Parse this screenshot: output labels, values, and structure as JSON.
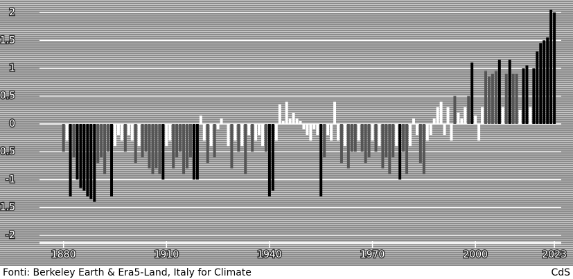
{
  "chart_data": {
    "type": "bar",
    "x": [
      1880,
      1881,
      1882,
      1883,
      1884,
      1885,
      1886,
      1887,
      1888,
      1889,
      1890,
      1891,
      1892,
      1893,
      1894,
      1895,
      1896,
      1897,
      1898,
      1899,
      1900,
      1901,
      1902,
      1903,
      1904,
      1905,
      1906,
      1907,
      1908,
      1909,
      1910,
      1911,
      1912,
      1913,
      1914,
      1915,
      1916,
      1917,
      1918,
      1919,
      1920,
      1921,
      1922,
      1923,
      1924,
      1925,
      1926,
      1927,
      1928,
      1929,
      1930,
      1931,
      1932,
      1933,
      1934,
      1935,
      1936,
      1937,
      1938,
      1939,
      1940,
      1941,
      1942,
      1943,
      1944,
      1945,
      1946,
      1947,
      1948,
      1949,
      1950,
      1951,
      1952,
      1953,
      1954,
      1955,
      1956,
      1957,
      1958,
      1959,
      1960,
      1961,
      1962,
      1963,
      1964,
      1965,
      1966,
      1967,
      1968,
      1969,
      1970,
      1971,
      1972,
      1973,
      1974,
      1975,
      1976,
      1977,
      1978,
      1979,
      1980,
      1981,
      1982,
      1983,
      1984,
      1985,
      1986,
      1987,
      1988,
      1989,
      1990,
      1991,
      1992,
      1993,
      1994,
      1995,
      1996,
      1997,
      1998,
      1999,
      2000,
      2001,
      2002,
      2003,
      2004,
      2005,
      2006,
      2007,
      2008,
      2009,
      2010,
      2011,
      2012,
      2013,
      2014,
      2015,
      2016,
      2017,
      2018,
      2019,
      2020,
      2021,
      2022,
      2023
    ],
    "values": [
      -0.5,
      -0.3,
      -1.3,
      -0.6,
      -1.0,
      -1.15,
      -1.2,
      -1.3,
      -1.35,
      -1.4,
      -0.7,
      -0.6,
      -0.9,
      -0.5,
      -1.3,
      -0.4,
      -0.2,
      -0.3,
      -0.5,
      -0.2,
      -0.3,
      -0.7,
      -0.4,
      -0.6,
      -0.5,
      -0.8,
      -0.9,
      -0.8,
      -0.9,
      -1.0,
      -0.4,
      -0.3,
      -0.8,
      -0.6,
      -0.5,
      -0.9,
      -0.8,
      -0.6,
      -1.0,
      -1.0,
      0.15,
      -0.3,
      -0.7,
      -0.4,
      -0.6,
      -0.1,
      0.1,
      0,
      -0.4,
      -0.8,
      -0.3,
      -0.5,
      -0.4,
      -0.9,
      -0.2,
      -0.5,
      -0.3,
      -0.2,
      -0.4,
      -0.5,
      -1.3,
      -1.2,
      -0.3,
      0.35,
      0.05,
      0.4,
      0.1,
      0.2,
      0.1,
      0.05,
      -0.1,
      -0.2,
      -0.3,
      -0.1,
      -0.2,
      -1.3,
      -0.6,
      -0.2,
      -0.3,
      0.4,
      -0.3,
      -0.7,
      -0.4,
      -0.8,
      -0.5,
      -0.5,
      -0.3,
      -0.5,
      -0.7,
      -0.6,
      -0.3,
      -0.5,
      -0.4,
      -0.8,
      -0.6,
      -0.9,
      -0.6,
      -0.4,
      -1.0,
      -0.5,
      -0.9,
      -0.4,
      0.1,
      -0.2,
      -0.7,
      -0.9,
      -0.3,
      -0.2,
      0.1,
      0.3,
      0.4,
      -0.2,
      0.3,
      -0.3,
      0.5,
      0.2,
      0.1,
      0.3,
      0.5,
      1.1,
      0.15,
      -0.3,
      0.3,
      0.95,
      0.85,
      0.9,
      0.95,
      1.15,
      0.3,
      0.9,
      1.15,
      0.9,
      0.9,
      0.25,
      1.0,
      1.05,
      0.3,
      1.0,
      1.3,
      1.45,
      1.5,
      1.55,
      2.05,
      2.0
    ],
    "color_steps": [
      [
        1,
        "#000000"
      ],
      [
        0.5,
        "#555555"
      ],
      [
        0,
        "#ffffff"
      ]
    ],
    "xlim": [
      1873,
      2025
    ],
    "xticks": [
      1880,
      1910,
      1940,
      1970,
      2000,
      2023
    ],
    "ylim": [
      -2.2,
      2.1
    ],
    "yticks": [
      2,
      1.5,
      1,
      0.5,
      0,
      -0.5,
      -1,
      -1.5,
      -2
    ],
    "grid": true,
    "source": "Fonti: Berkeley Earth & Era5-Land, Italy for Climate",
    "credit": "CdS"
  }
}
